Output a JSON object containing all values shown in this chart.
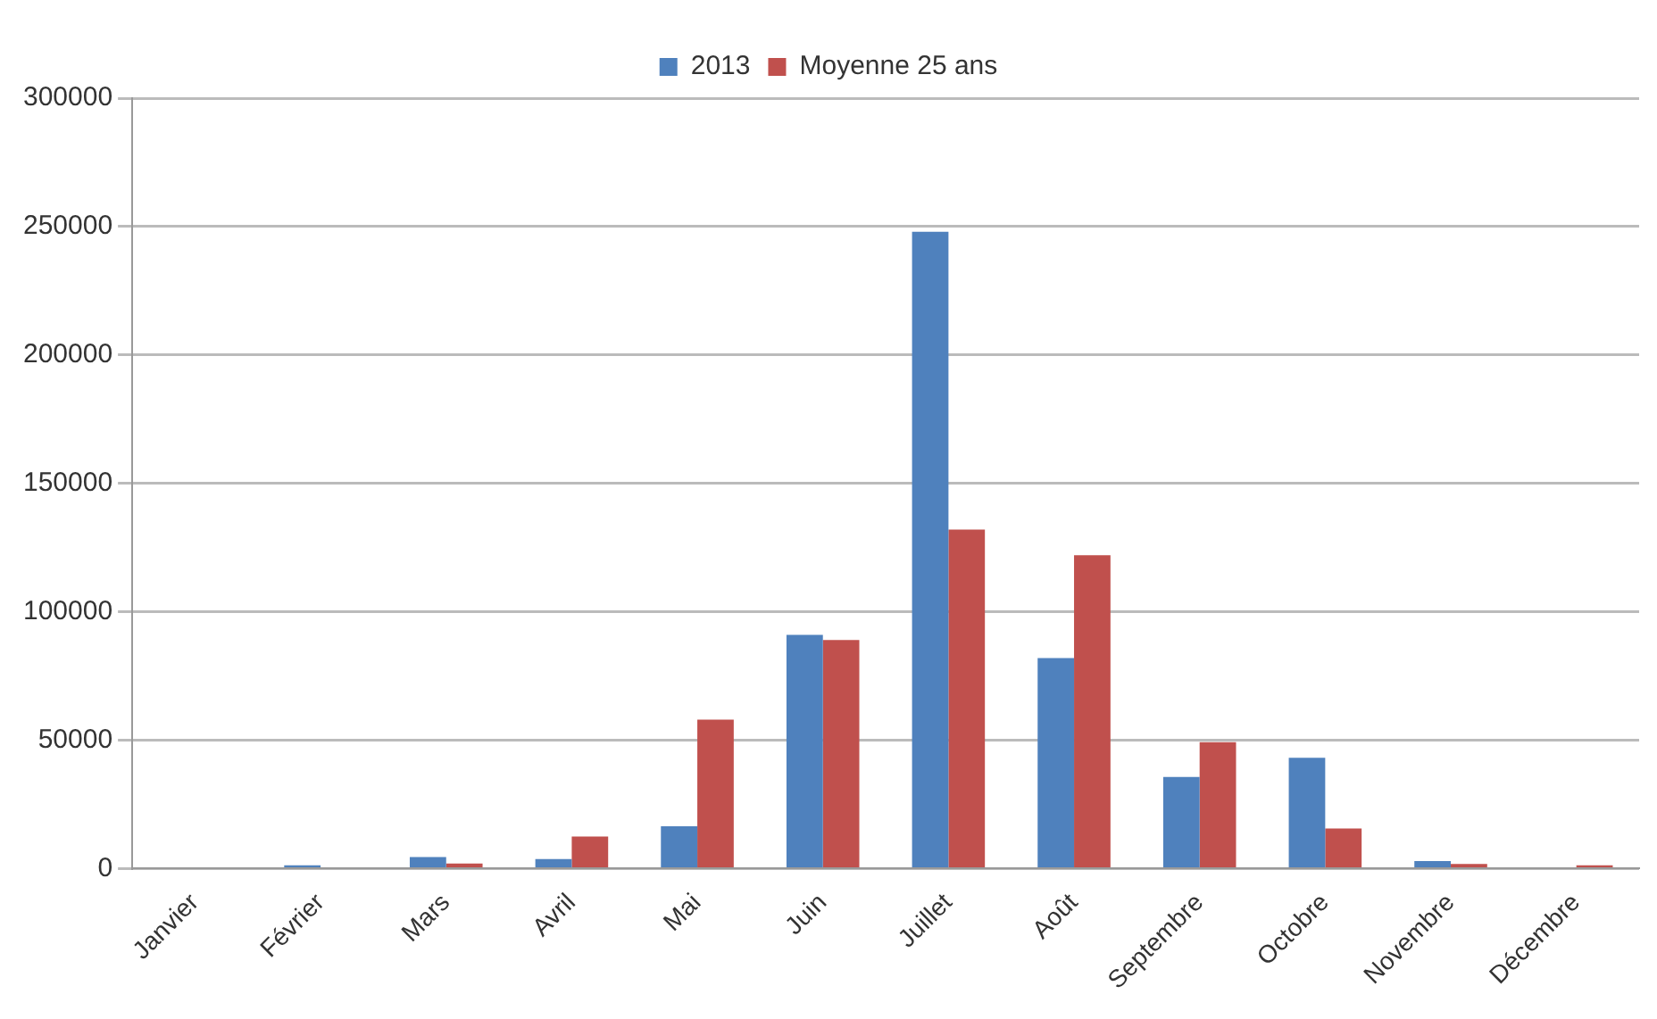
{
  "chart_data": {
    "type": "bar",
    "categories": [
      "Janvier",
      "Février",
      "Mars",
      "Avril",
      "Mai",
      "Juin",
      "Juillet",
      "Août",
      "Septembre",
      "Octobre",
      "Novembre",
      "Décembre"
    ],
    "series": [
      {
        "name": "2013",
        "color": "#4f81bd",
        "values": [
          0,
          1300,
          4500,
          3700,
          16500,
          91000,
          248000,
          82000,
          35700,
          43100,
          2900,
          0
        ]
      },
      {
        "name": "Moyenne 25 ans",
        "color": "#c0504d",
        "values": [
          0,
          0,
          2000,
          12500,
          58000,
          89000,
          132000,
          122000,
          49200,
          15600,
          1800,
          1300
        ]
      }
    ],
    "ylim": [
      0,
      300000
    ],
    "yticks": [
      0,
      50000,
      100000,
      150000,
      200000,
      250000,
      300000
    ],
    "grid": "y",
    "legend": "top"
  }
}
